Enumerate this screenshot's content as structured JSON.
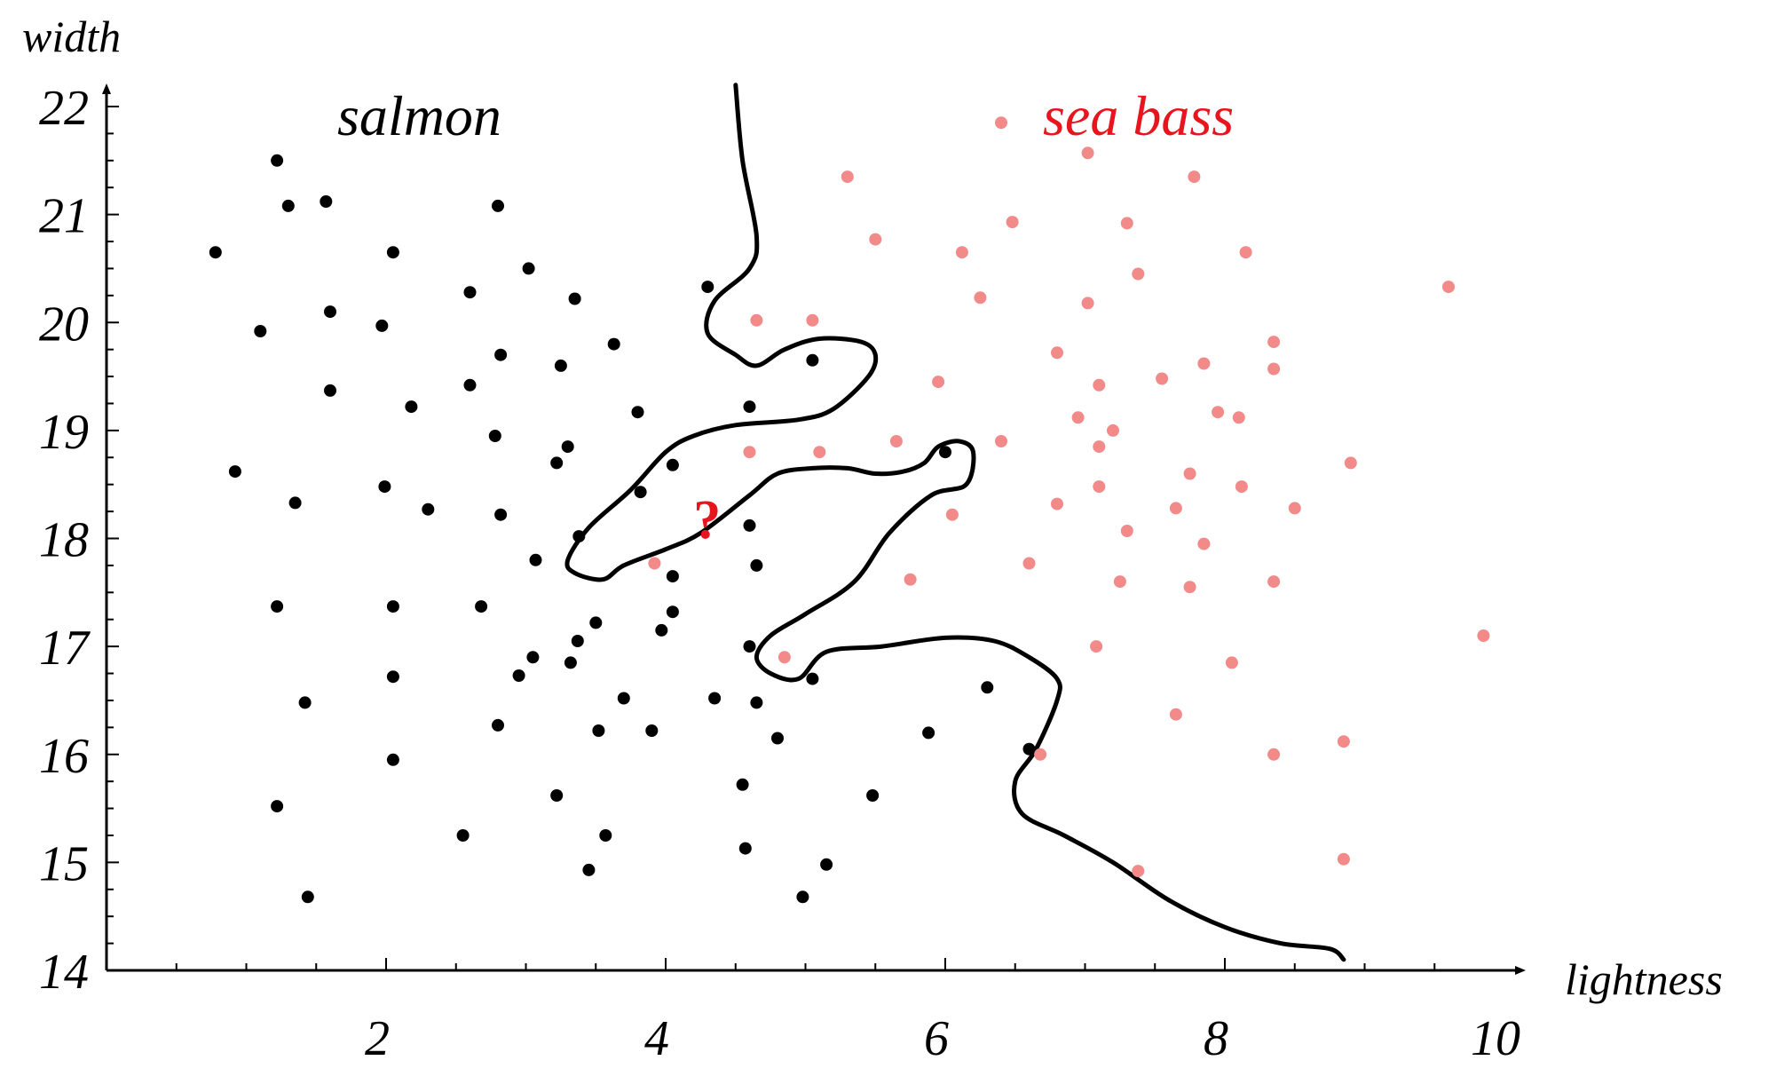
{
  "chart_data": {
    "type": "scatter",
    "xlabel": "lightness",
    "ylabel": "width",
    "xlim": [
      0,
      10
    ],
    "ylim": [
      14,
      22
    ],
    "xticks": [
      2,
      4,
      6,
      8,
      10
    ],
    "yticks": [
      14,
      15,
      16,
      17,
      18,
      19,
      20,
      21,
      22
    ],
    "grid": false,
    "annotations": {
      "salmon_label": "salmon",
      "sea_bass_label": "sea bass",
      "unknown_marker": "?",
      "unknown_point": [
        4.3,
        18.25
      ]
    },
    "colors": {
      "salmon": "#000000",
      "sea_bass": "#f28a8a",
      "question": "#e8141e"
    },
    "series": [
      {
        "name": "salmon",
        "color": "#000000",
        "points": [
          [
            1.22,
            21.5
          ],
          [
            1.3,
            21.08
          ],
          [
            1.57,
            21.12
          ],
          [
            0.78,
            20.65
          ],
          [
            2.05,
            20.65
          ],
          [
            2.8,
            21.08
          ],
          [
            3.02,
            20.5
          ],
          [
            1.6,
            20.1
          ],
          [
            2.6,
            20.28
          ],
          [
            3.35,
            20.22
          ],
          [
            4.3,
            20.33
          ],
          [
            1.1,
            19.92
          ],
          [
            1.97,
            19.97
          ],
          [
            2.82,
            19.7
          ],
          [
            3.25,
            19.6
          ],
          [
            3.63,
            19.8
          ],
          [
            5.05,
            19.65
          ],
          [
            1.6,
            19.37
          ],
          [
            2.6,
            19.42
          ],
          [
            2.18,
            19.22
          ],
          [
            3.8,
            19.17
          ],
          [
            4.6,
            19.22
          ],
          [
            2.78,
            18.95
          ],
          [
            3.3,
            18.85
          ],
          [
            3.22,
            18.7
          ],
          [
            4.05,
            18.68
          ],
          [
            0.92,
            18.62
          ],
          [
            6.0,
            18.8
          ],
          [
            1.35,
            18.33
          ],
          [
            1.99,
            18.48
          ],
          [
            2.3,
            18.27
          ],
          [
            2.82,
            18.22
          ],
          [
            3.82,
            18.43
          ],
          [
            4.6,
            18.12
          ],
          [
            3.38,
            18.02
          ],
          [
            3.07,
            17.8
          ],
          [
            4.05,
            17.65
          ],
          [
            4.65,
            17.75
          ],
          [
            1.22,
            17.37
          ],
          [
            2.05,
            17.37
          ],
          [
            2.68,
            17.37
          ],
          [
            4.05,
            17.32
          ],
          [
            3.5,
            17.22
          ],
          [
            3.37,
            17.05
          ],
          [
            3.97,
            17.15
          ],
          [
            4.6,
            17.0
          ],
          [
            3.05,
            16.9
          ],
          [
            3.32,
            16.85
          ],
          [
            2.95,
            16.73
          ],
          [
            2.05,
            16.72
          ],
          [
            5.05,
            16.7
          ],
          [
            6.3,
            16.62
          ],
          [
            1.42,
            16.48
          ],
          [
            3.7,
            16.52
          ],
          [
            4.35,
            16.52
          ],
          [
            4.65,
            16.48
          ],
          [
            2.8,
            16.27
          ],
          [
            3.52,
            16.22
          ],
          [
            3.9,
            16.22
          ],
          [
            4.8,
            16.15
          ],
          [
            5.88,
            16.2
          ],
          [
            6.6,
            16.05
          ],
          [
            2.05,
            15.95
          ],
          [
            4.55,
            15.72
          ],
          [
            3.22,
            15.62
          ],
          [
            5.48,
            15.62
          ],
          [
            1.22,
            15.52
          ],
          [
            2.55,
            15.25
          ],
          [
            3.57,
            15.25
          ],
          [
            4.57,
            15.13
          ],
          [
            3.45,
            14.93
          ],
          [
            5.15,
            14.98
          ],
          [
            1.44,
            14.68
          ],
          [
            4.98,
            14.68
          ]
        ]
      },
      {
        "name": "sea bass",
        "color": "#f28a8a",
        "points": [
          [
            6.4,
            21.85
          ],
          [
            7.02,
            21.57
          ],
          [
            5.3,
            21.35
          ],
          [
            7.78,
            21.35
          ],
          [
            6.48,
            20.93
          ],
          [
            7.3,
            20.92
          ],
          [
            5.5,
            20.77
          ],
          [
            6.12,
            20.65
          ],
          [
            8.15,
            20.65
          ],
          [
            7.38,
            20.45
          ],
          [
            6.25,
            20.23
          ],
          [
            7.02,
            20.18
          ],
          [
            9.6,
            20.33
          ],
          [
            4.65,
            20.02
          ],
          [
            5.05,
            20.02
          ],
          [
            8.35,
            19.82
          ],
          [
            6.8,
            19.72
          ],
          [
            7.85,
            19.62
          ],
          [
            8.35,
            19.57
          ],
          [
            5.95,
            19.45
          ],
          [
            7.1,
            19.42
          ],
          [
            7.55,
            19.48
          ],
          [
            6.95,
            19.12
          ],
          [
            7.95,
            19.17
          ],
          [
            8.1,
            19.12
          ],
          [
            7.2,
            19.0
          ],
          [
            5.65,
            18.9
          ],
          [
            6.4,
            18.9
          ],
          [
            7.1,
            18.85
          ],
          [
            4.6,
            18.8
          ],
          [
            5.1,
            18.8
          ],
          [
            8.9,
            18.7
          ],
          [
            7.75,
            18.6
          ],
          [
            6.8,
            18.32
          ],
          [
            7.1,
            18.48
          ],
          [
            7.65,
            18.28
          ],
          [
            8.12,
            18.48
          ],
          [
            8.5,
            18.28
          ],
          [
            6.05,
            18.22
          ],
          [
            7.3,
            18.07
          ],
          [
            7.85,
            17.95
          ],
          [
            3.92,
            17.77
          ],
          [
            6.6,
            17.77
          ],
          [
            5.75,
            17.62
          ],
          [
            7.25,
            17.6
          ],
          [
            7.75,
            17.55
          ],
          [
            8.35,
            17.6
          ],
          [
            9.85,
            17.1
          ],
          [
            7.08,
            17.0
          ],
          [
            4.85,
            16.9
          ],
          [
            8.05,
            16.85
          ],
          [
            7.65,
            16.37
          ],
          [
            6.68,
            16.0
          ],
          [
            8.35,
            16.0
          ],
          [
            8.85,
            16.12
          ],
          [
            7.38,
            14.92
          ],
          [
            8.85,
            15.03
          ]
        ]
      }
    ],
    "decision_boundary": [
      [
        4.5,
        22.2
      ],
      [
        4.55,
        21.5
      ],
      [
        4.65,
        20.8
      ],
      [
        4.6,
        20.5
      ],
      [
        4.35,
        20.2
      ],
      [
        4.3,
        19.9
      ],
      [
        4.5,
        19.7
      ],
      [
        4.65,
        19.6
      ],
      [
        4.85,
        19.75
      ],
      [
        5.1,
        19.85
      ],
      [
        5.4,
        19.82
      ],
      [
        5.5,
        19.7
      ],
      [
        5.45,
        19.5
      ],
      [
        5.2,
        19.2
      ],
      [
        4.95,
        19.1
      ],
      [
        4.5,
        19.05
      ],
      [
        4.2,
        18.95
      ],
      [
        4.0,
        18.8
      ],
      [
        3.75,
        18.45
      ],
      [
        3.45,
        18.1
      ],
      [
        3.3,
        17.8
      ],
      [
        3.35,
        17.68
      ],
      [
        3.55,
        17.62
      ],
      [
        3.7,
        17.75
      ],
      [
        4.0,
        17.9
      ],
      [
        4.25,
        18.05
      ],
      [
        4.6,
        18.4
      ],
      [
        4.8,
        18.6
      ],
      [
        5.05,
        18.65
      ],
      [
        5.3,
        18.65
      ],
      [
        5.5,
        18.6
      ],
      [
        5.7,
        18.62
      ],
      [
        5.85,
        18.7
      ],
      [
        5.95,
        18.85
      ],
      [
        6.1,
        18.9
      ],
      [
        6.2,
        18.8
      ],
      [
        6.15,
        18.5
      ],
      [
        5.9,
        18.4
      ],
      [
        5.6,
        18.05
      ],
      [
        5.35,
        17.6
      ],
      [
        5.0,
        17.3
      ],
      [
        4.75,
        17.1
      ],
      [
        4.65,
        16.9
      ],
      [
        4.75,
        16.75
      ],
      [
        4.95,
        16.7
      ],
      [
        5.15,
        16.95
      ],
      [
        5.55,
        17.0
      ],
      [
        6.0,
        17.08
      ],
      [
        6.35,
        17.05
      ],
      [
        6.6,
        16.9
      ],
      [
        6.8,
        16.7
      ],
      [
        6.8,
        16.5
      ],
      [
        6.65,
        16.05
      ],
      [
        6.5,
        15.75
      ],
      [
        6.55,
        15.45
      ],
      [
        6.85,
        15.25
      ],
      [
        7.2,
        15.0
      ],
      [
        7.6,
        14.65
      ],
      [
        8.0,
        14.4
      ],
      [
        8.4,
        14.25
      ],
      [
        8.75,
        14.2
      ],
      [
        8.85,
        14.1
      ]
    ]
  }
}
